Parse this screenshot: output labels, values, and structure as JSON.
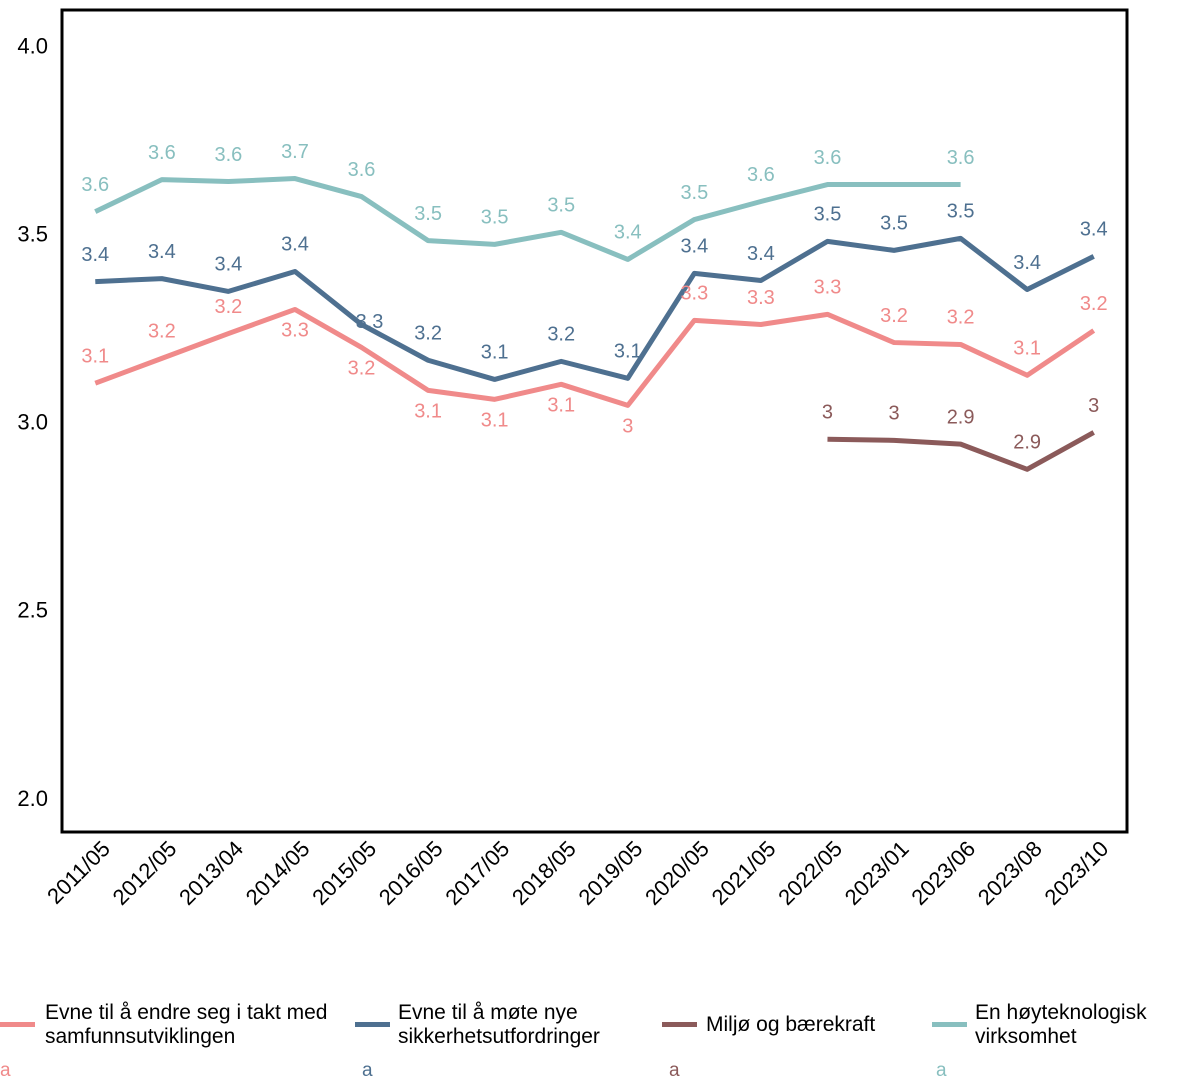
{
  "chart_data": {
    "type": "line",
    "categories": [
      "2011/05",
      "2012/05",
      "2013/04",
      "2014/05",
      "2015/05",
      "2016/05",
      "2017/05",
      "2018/05",
      "2019/05",
      "2020/05",
      "2021/05",
      "2022/05",
      "2023/01",
      "2023/06",
      "2023/08",
      "2023/10"
    ],
    "ylim": [
      1.915,
      4.1
    ],
    "yticks": [
      {
        "value": 2,
        "label": "2.0"
      },
      2.5,
      {
        "value": 3,
        "label": "3.0"
      },
      3.5,
      {
        "value": 4,
        "label": "4.0"
      }
    ],
    "grid": false,
    "legend": "bottom",
    "legend_subtexts": [
      "a",
      "a",
      "a",
      "a"
    ],
    "series": [
      {
        "name": "Evne til å endre seg i takt med samfunnsutviklingen",
        "color": "#f08a8a",
        "values": [
          3.108,
          3.174,
          3.24,
          3.304,
          3.203,
          3.089,
          3.065,
          3.105,
          3.049,
          3.275,
          3.264,
          3.291,
          3.216,
          3.211,
          3.129,
          3.248
        ],
        "value_labels": [
          "3.1",
          "3.2",
          "3.2",
          "3.3",
          "3.2",
          "3.1",
          "3.1",
          "3.1",
          "3",
          "3.3",
          "3.3",
          "3.3",
          "3.2",
          "3.2",
          "3.1",
          "3.2"
        ]
      },
      {
        "name": "Evne til å møte nye sikkerhetsutfordringer",
        "color": "#4e7090",
        "values": [
          3.378,
          3.386,
          3.352,
          3.405,
          3.264,
          3.169,
          3.118,
          3.166,
          3.121,
          3.4,
          3.381,
          3.485,
          3.461,
          3.493,
          3.357,
          3.445
        ],
        "value_labels": [
          "3.4",
          "3.4",
          "3.4",
          "3.4",
          "3.3",
          "3.2",
          "3.1",
          "3.2",
          "3.1",
          "3.4",
          "3.4",
          "3.5",
          "3.5",
          "3.5",
          "3.4",
          "3.4"
        ]
      },
      {
        "name": "Miljø og bærekraft",
        "color": "#8b5a5a",
        "values": [
          null,
          null,
          null,
          null,
          null,
          null,
          null,
          null,
          null,
          null,
          null,
          2.959,
          2.956,
          2.946,
          2.879,
          2.977
        ],
        "value_labels": [
          null,
          null,
          null,
          null,
          null,
          null,
          null,
          null,
          null,
          null,
          null,
          "3",
          "3",
          "2.9",
          "2.9",
          "3"
        ]
      },
      {
        "name": "En høyteknologisk virksomhet",
        "color": "#88bfbf",
        "values": [
          3.564,
          3.649,
          3.644,
          3.652,
          3.604,
          3.487,
          3.477,
          3.509,
          3.437,
          3.543,
          3.591,
          3.636,
          3.636,
          3.636,
          null,
          null
        ],
        "value_labels": [
          "3.6",
          "3.6",
          "3.6",
          "3.7",
          "3.6",
          "3.5",
          "3.5",
          "3.5",
          "3.4",
          "3.5",
          "3.6",
          "3.6",
          null,
          "3.6",
          null,
          null
        ]
      }
    ]
  }
}
